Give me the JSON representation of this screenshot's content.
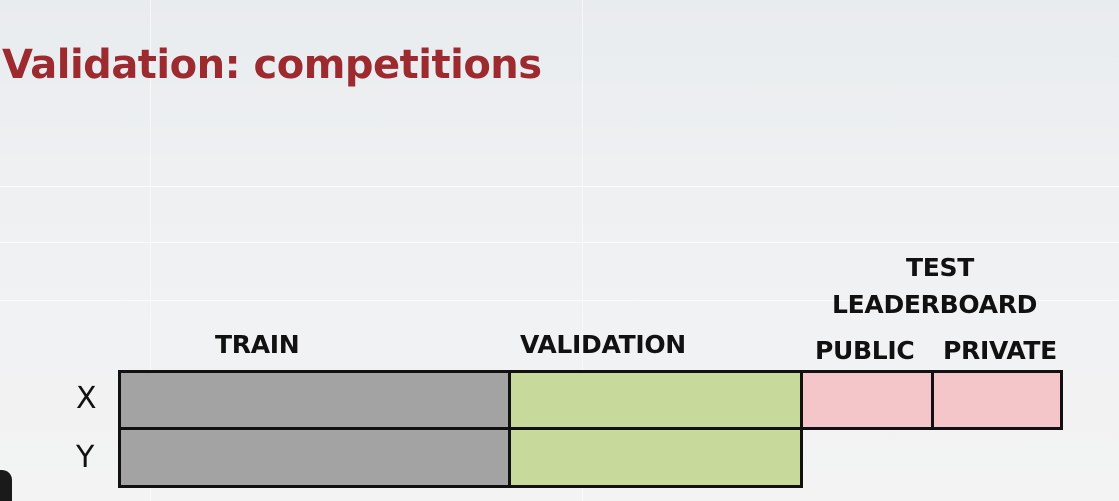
{
  "slide": {
    "title": "Validation: competitions"
  },
  "diagram": {
    "labels": {
      "train": "TRAIN",
      "validation": "VALIDATION",
      "test": "TEST",
      "leaderboard": "LEADERBOARD",
      "public": "PUBLIC",
      "private": "PRIVATE"
    },
    "rows": {
      "x": "X",
      "y": "Y"
    },
    "colors": {
      "title": "#9c2a2f",
      "train": "#a3a3a3",
      "validation": "#c7da9c",
      "test": "#f4c6c9",
      "border": "#111111"
    }
  }
}
